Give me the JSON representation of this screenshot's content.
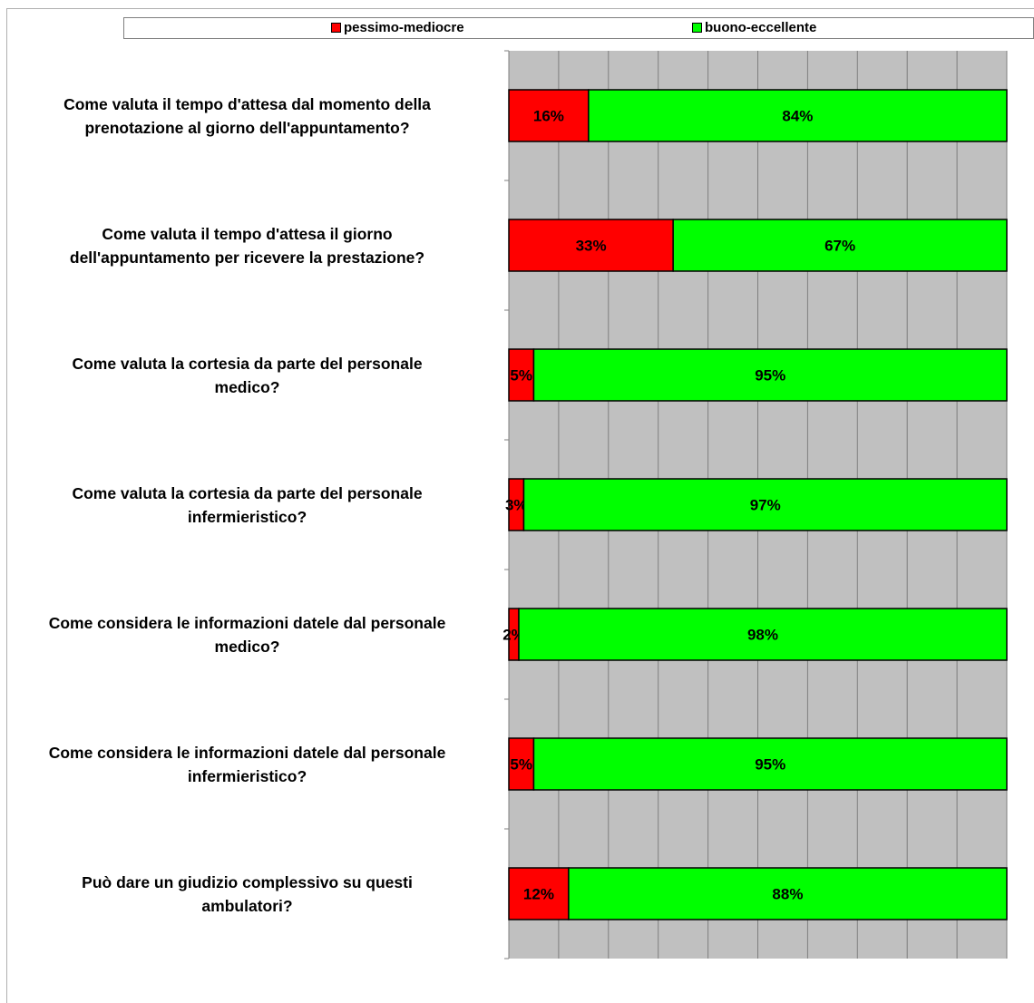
{
  "chart_data": {
    "type": "bar",
    "orientation": "horizontal",
    "stacked": true,
    "percent_stacked": true,
    "xlim": [
      0,
      100
    ],
    "grid": true,
    "legend_position": "top",
    "categories": [
      "Come valuta il tempo d'attesa dal momento della prenotazione al giorno dell'appuntamento?",
      "Come valuta il tempo d'attesa il giorno dell'appuntamento per ricevere la prestazione?",
      "Come valuta la cortesia da parte del personale medico?",
      "Come valuta la cortesia da parte del personale infermieristico?",
      "Come considera le informazioni datele dal personale medico?",
      "Come considera le informazioni datele dal personale infermieristico?",
      "Può dare un giudizio complessivo su questi ambulatori?"
    ],
    "category_lines": [
      [
        "Come valuta il tempo d'attesa dal momento della",
        "prenotazione al giorno dell'appuntamento?"
      ],
      [
        "Come valuta il tempo d'attesa il giorno",
        "dell'appuntamento per ricevere la prestazione?"
      ],
      [
        "Come valuta la cortesia da parte del personale",
        "medico?"
      ],
      [
        "Come valuta la cortesia da parte del personale",
        "infermieristico?"
      ],
      [
        "Come considera le informazioni datele dal personale",
        "medico?"
      ],
      [
        "Come considera le informazioni datele dal personale",
        "infermieristico?"
      ],
      [
        "Può dare un giudizio complessivo su questi",
        "ambulatori?"
      ]
    ],
    "series": [
      {
        "name": "pessimo-mediocre",
        "color": "#ff0000",
        "values": [
          16,
          33,
          5,
          3,
          2,
          5,
          12
        ],
        "labels": [
          "16%",
          "33%",
          "5%",
          "3%",
          "2%",
          "5%",
          "12%"
        ]
      },
      {
        "name": "buono-eccellente",
        "color": "#00ff00",
        "values": [
          84,
          67,
          95,
          97,
          98,
          95,
          88
        ],
        "labels": [
          "84%",
          "67%",
          "95%",
          "97%",
          "98%",
          "95%",
          "88%"
        ]
      }
    ],
    "plot_background": "#c0c0c0"
  }
}
